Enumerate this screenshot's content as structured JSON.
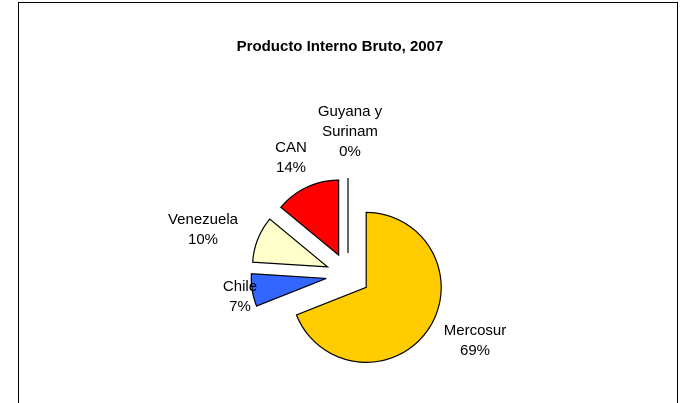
{
  "chart_data": {
    "type": "pie",
    "title": "Producto Interno Bruto, 2007",
    "categories": [
      "Mercosur",
      "Chile",
      "Venezuela",
      "CAN",
      "Guyana y Surinam"
    ],
    "values": [
      69,
      7,
      10,
      14,
      0
    ],
    "value_labels": [
      "69%",
      "7%",
      "10%",
      "14%",
      "0%"
    ],
    "colors": [
      "#ffcc00",
      "#3366ff",
      "#ffffcc",
      "#ff0000",
      "#ccffff"
    ]
  }
}
